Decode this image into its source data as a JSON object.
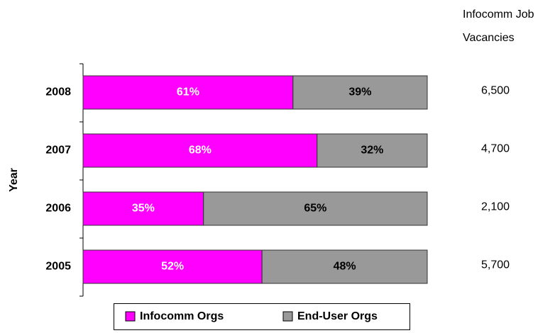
{
  "chart_data": {
    "type": "stacked-bar-horizontal",
    "categories": [
      "2008",
      "2007",
      "2006",
      "2005"
    ],
    "series": [
      {
        "name": "Infocomm Orgs",
        "color": "#ff00ff",
        "values": [
          61,
          68,
          35,
          52
        ],
        "value_labels": [
          "61%",
          "68%",
          "35%",
          "52%"
        ]
      },
      {
        "name": "End-User Orgs",
        "color": "#999999",
        "values": [
          39,
          32,
          65,
          48
        ],
        "value_labels": [
          "39%",
          "32%",
          "65%",
          "48%"
        ]
      }
    ],
    "xlim": [
      0,
      100
    ],
    "y_label": "Year",
    "side_title": "Infocomm Job Vacancies",
    "side_values": [
      "6,500",
      "4,700",
      "2,100",
      "5,700"
    ],
    "legend": "bottom"
  }
}
